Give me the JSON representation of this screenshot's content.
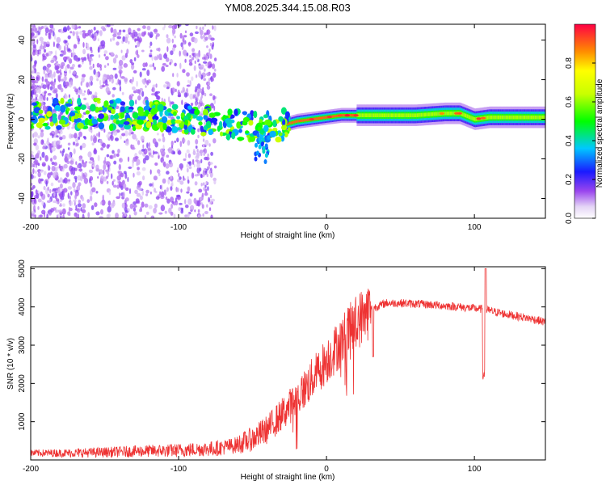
{
  "title": "YM08.2025.344.15.08.R03",
  "chart_data": [
    {
      "type": "heatmap",
      "xlabel": "Height of straight line (km)",
      "ylabel": "Frequency (Hz)",
      "xlim": [
        -200,
        148
      ],
      "ylim": [
        -50,
        48
      ],
      "xticks": [
        -200,
        -100,
        0,
        100
      ],
      "yticks": [
        -40,
        -20,
        0,
        20,
        40
      ],
      "colorbar": {
        "label": "Normalized spectral amplitude",
        "range": [
          0,
          1
        ],
        "ticks": [
          "0.0",
          "0.2",
          "0.4",
          "0.6",
          "0.8"
        ],
        "tick_values": [
          0,
          0.2,
          0.4,
          0.6,
          0.8
        ]
      },
      "ridge": {
        "x": [
          -200,
          -150,
          -100,
          -70,
          -50,
          -40,
          -30,
          -20,
          -10,
          0,
          10,
          20,
          40,
          60,
          80,
          90,
          100,
          110,
          148
        ],
        "freq": [
          2,
          3,
          1,
          -2,
          -4,
          -4,
          -3,
          -1,
          0,
          1,
          2,
          2,
          2,
          2,
          3,
          3,
          0,
          1,
          1
        ]
      }
    },
    {
      "type": "line",
      "xlabel": "Height of straight line (km)",
      "ylabel": "SNR (10 * v/v)",
      "xlim": [
        -200,
        148
      ],
      "ylim": [
        0,
        5050
      ],
      "xticks": [
        -200,
        -100,
        0,
        100
      ],
      "yticks": [
        1000,
        2000,
        3000,
        4000,
        5000
      ],
      "series": [
        {
          "name": "SNR",
          "color": "#ee3333",
          "x": [
            -200,
            -175,
            -150,
            -125,
            -100,
            -87,
            -75,
            -62,
            -50,
            -40,
            -30,
            -20,
            -10,
            0,
            10,
            20,
            30,
            40,
            50,
            60,
            70,
            80,
            90,
            100,
            106,
            110,
            120,
            130,
            140,
            148
          ],
          "y": [
            180,
            180,
            200,
            230,
            250,
            280,
            300,
            380,
            550,
            800,
            1200,
            1600,
            2100,
            2600,
            3100,
            3600,
            3950,
            4100,
            4100,
            4080,
            4060,
            4030,
            4000,
            3960,
            3940,
            3900,
            3820,
            3750,
            3680,
            3600
          ]
        }
      ]
    }
  ]
}
